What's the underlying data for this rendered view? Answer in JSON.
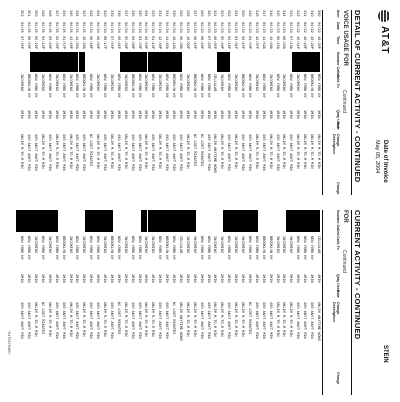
{
  "header": {
    "logo_text": "AT&T",
    "invoice_title": "Date of Invoice",
    "invoice_date": "May 05, 2004",
    "name_fragment": "STEIN"
  },
  "left_section": {
    "title": "CURRENT ACTIVITY - CONTINUED",
    "subtitle": "FOR",
    "subtitle_cont": "Continued",
    "columns": [
      "Number Called",
      "Calls To",
      "Qnty Used",
      "Rate",
      "Charge Description",
      "Charge"
    ]
  },
  "right_section": {
    "title": "DETAIL OF CURRENT ACTIVITY - CONTINUED",
    "subtitle": "VOICE USAGE FOR",
    "subtitle_cont": "Continued",
    "columns": [
      "Item",
      "Date",
      "Time",
      "Number Called",
      "Calls To",
      "Qnty Used",
      "Rate",
      "Charge Description",
      "Charge"
    ]
  },
  "left_rows": [
    {
      "calls_to": "CELLULAR",
      "qnty": "1MIN",
      "rate": "",
      "desc": "UNLIM ANYTIME NONO",
      "charge": ""
    },
    {
      "calls_to": "NEW YORK NY",
      "qnty": "1MIN",
      "rate": "",
      "desc": "400 ANYT ANYT MIN",
      "charge": ""
    },
    {
      "calls_to": "NEW YORK NY",
      "qnty": "1MIN",
      "rate": "",
      "desc": "400 ANYT ANYT MIN",
      "charge": ""
    },
    {
      "calls_to": "NEW YORK NY",
      "qnty": "1MIN",
      "rate": "",
      "desc": "400 ANYT ANYT MIN",
      "charge": ""
    },
    {
      "calls_to": "INCOMING",
      "qnty": "3MIN",
      "rate": "",
      "desc": "UNLIM M-TO-M MIN",
      "charge": ""
    },
    {
      "calls_to": "INCOMING",
      "qnty": "1MIN",
      "rate": "",
      "desc": "UNLIM M-TO-M MIN",
      "charge": ""
    },
    {
      "calls_to": "INCOMING",
      "qnty": "2MIN",
      "rate": "",
      "desc": "UNLIM M-TO-M MIN",
      "charge": ""
    },
    {
      "calls_to": "BROOKLYN NY",
      "qnty": "2MIN",
      "rate": "",
      "desc": "400 ANYT ANYT MIN",
      "charge": ""
    },
    {
      "calls_to": "BROOKLYN NY",
      "qnty": "1MIN",
      "rate": "",
      "desc": "400 ANYT ANYT MIN",
      "charge": ""
    },
    {
      "calls_to": "NEW YORK NY",
      "qnty": "1MIN",
      "rate": "",
      "desc": "400 ANYT ANYT MIN",
      "charge": ""
    },
    {
      "calls_to": "NEW YORK NY",
      "qnty": "4MIN",
      "rate": "",
      "desc": "NC LOST MINUTES",
      "charge": ""
    },
    {
      "calls_to": "INCOMING",
      "qnty": "1MIN",
      "rate": "",
      "desc": "UNLIM M-TO-M MIN",
      "charge": ""
    },
    {
      "calls_to": "INCOMING",
      "qnty": "1MIN",
      "rate": "",
      "desc": "UNLIM M-TO-M MIN",
      "charge": ""
    },
    {
      "calls_to": "NEW YORK NY",
      "qnty": "1MIN",
      "rate": "",
      "desc": "400 ANYT ANYT MIN",
      "charge": ""
    },
    {
      "calls_to": "INCOMING",
      "qnty": "2MIN",
      "rate": "",
      "desc": "UNLIM M-TO-M MIN",
      "charge": ""
    },
    {
      "calls_to": "INCOMING",
      "qnty": "1MIN",
      "rate": "",
      "desc": "UNLIM M-TO-M MIN",
      "charge": ""
    },
    {
      "calls_to": "NEW YORK NY",
      "qnty": "1MIN",
      "rate": "",
      "desc": "400 ANYT ANYT MIN",
      "charge": ""
    },
    {
      "calls_to": "NEW YORK NY",
      "qnty": "2MIN",
      "rate": "",
      "desc": "400 ANYT ANYT MIN",
      "charge": ""
    },
    {
      "calls_to": "INCOMING",
      "qnty": "1MIN",
      "rate": "",
      "desc": "UNLIM M-TO-M MIN",
      "charge": ""
    },
    {
      "calls_to": "INCOMING",
      "qnty": "1MIN",
      "rate": "",
      "desc": "UNLIM M-TO-M MIN",
      "charge": ""
    },
    {
      "calls_to": "CELLULAR",
      "qnty": "1MIN",
      "rate": "",
      "desc": "UNLIM ANYTIME NONO",
      "charge": ""
    },
    {
      "calls_to": "NEW YORK NY",
      "qnty": "1MIN",
      "rate": "",
      "desc": "NC LOST MINUTES",
      "charge": ""
    },
    {
      "calls_to": "BROOKLYN NY",
      "qnty": "2MIN",
      "rate": "",
      "desc": "400 ANYT ANYT MIN",
      "charge": ""
    },
    {
      "calls_to": "NEW YORK NY",
      "qnty": "1MIN",
      "rate": "",
      "desc": "400 ANYT ANYT MIN",
      "charge": ""
    },
    {
      "calls_to": "INCOMING",
      "qnty": "1MIN",
      "rate": "",
      "desc": "UNLIM M-TO-M MIN",
      "charge": ""
    },
    {
      "calls_to": "INCOMING",
      "qnty": "1MIN",
      "rate": "",
      "desc": "UNLIM M-TO-M MIN",
      "charge": ""
    },
    {
      "calls_to": "NEW YORK NY",
      "qnty": "1MIN",
      "rate": "",
      "desc": "400 ANYT ANYT MIN",
      "charge": ""
    },
    {
      "calls_to": "NEW YORK NY",
      "qnty": "1MIN",
      "rate": "",
      "desc": "400 ANYT ANYT MIN",
      "charge": ""
    },
    {
      "calls_to": "INCOMING",
      "qnty": "2MIN",
      "rate": "",
      "desc": "UNLIM M-TO-M MIN",
      "charge": ""
    },
    {
      "calls_to": "NEW YORK NY",
      "qnty": "1MIN",
      "rate": "",
      "desc": "NC LOST MINUTES",
      "charge": ""
    },
    {
      "calls_to": "BROOKLYN NY",
      "qnty": "1MIN",
      "rate": "",
      "desc": "400 ANYT ANYT MIN",
      "charge": ""
    },
    {
      "calls_to": "INCOMING",
      "qnty": "1MIN",
      "rate": "",
      "desc": "UNLIM M-TO-M MIN",
      "charge": ""
    },
    {
      "calls_to": "NEW YORK NY",
      "qnty": "1MIN",
      "rate": "",
      "desc": "400 ANYT ANYT MIN",
      "charge": ""
    },
    {
      "calls_to": "NEW YORK NY",
      "qnty": "1MIN",
      "rate": "",
      "desc": "400 ANYT ANYT MIN",
      "charge": ""
    },
    {
      "calls_to": "INCOMING",
      "qnty": "1MIN",
      "rate": "",
      "desc": "UNLIM M-TO-M MIN",
      "charge": ""
    },
    {
      "calls_to": "NEW YORK NY",
      "qnty": "1MIN",
      "rate": "",
      "desc": "400 ANYT ANYT MIN",
      "charge": ""
    },
    {
      "calls_to": "INCOMING",
      "qnty": "2MIN",
      "rate": "",
      "desc": "UNLIM M-TO-M MIN",
      "charge": ""
    },
    {
      "calls_to": "BROOKLYN NY",
      "qnty": "1MIN",
      "rate": "",
      "desc": "400 ANYT ANYT MIN",
      "charge": ""
    },
    {
      "calls_to": "NEW YORK NY",
      "qnty": "1MIN",
      "rate": "",
      "desc": "400 ANYT ANYT MIN",
      "charge": ""
    },
    {
      "calls_to": "INCOMING",
      "qnty": "1MIN",
      "rate": "",
      "desc": "UNLIM M-TO-M MIN",
      "charge": ""
    },
    {
      "calls_to": "NEW YORK NY",
      "qnty": "1MIN",
      "rate": "",
      "desc": "NC LOST MINUTES",
      "charge": ""
    },
    {
      "calls_to": "INCOMING",
      "qnty": "1MIN",
      "rate": "",
      "desc": "UNLIM M-TO-M MIN",
      "charge": ""
    },
    {
      "calls_to": "NEW YORK NY",
      "qnty": "1MIN",
      "rate": "",
      "desc": "400 ANYT ANYT MIN",
      "charge": ""
    },
    {
      "calls_to": "NEW YORK NY",
      "qnty": "2MIN",
      "rate": "",
      "desc": "400 ANYT ANYT MIN",
      "charge": ""
    }
  ],
  "right_rows": [
    {
      "item": "309",
      "date": "04/22",
      "time": "10:26P",
      "calls_to": "NEW YORK NY",
      "qnty": "1MIN",
      "rate": "",
      "desc": "UNLIM M-TO-M MIN",
      "charge": ""
    },
    {
      "item": "310",
      "date": "04/22",
      "time": "10:29P",
      "calls_to": "BROOKLYN NY",
      "qnty": "1MIN",
      "rate": "",
      "desc": "UNLIM M-TO-M MIN",
      "charge": ""
    },
    {
      "item": "311",
      "date": "04/22",
      "time": "10:40P",
      "calls_to": "NEW YORK NY",
      "qnty": "1MIN",
      "rate": "",
      "desc": "UNLIM M-TO-M MIN",
      "charge": ""
    },
    {
      "item": "312",
      "date": "04/22",
      "time": "10:51P",
      "calls_to": "INCOMING",
      "qnty": "2MIN",
      "rate": "",
      "desc": "UNLIM M-TO-M MIN",
      "charge": ""
    },
    {
      "item": "313",
      "date": "04/23",
      "time": "07:13A",
      "calls_to": "NEW YORK NY",
      "qnty": "1MIN",
      "rate": "",
      "desc": "400 ANYT ANYT MIN",
      "charge": ""
    },
    {
      "item": "314",
      "date": "04/23",
      "time": "08:02A",
      "calls_to": "INCOMING",
      "qnty": "1MIN",
      "rate": "",
      "desc": "UNLIM M-TO-M MIN",
      "charge": ""
    },
    {
      "item": "315",
      "date": "04/23",
      "time": "09:15A",
      "calls_to": "NEW YORK NY",
      "qnty": "1MIN",
      "rate": "",
      "desc": "400 ANYT ANYT MIN",
      "charge": ""
    },
    {
      "item": "316",
      "date": "04/23",
      "time": "10:40A",
      "calls_to": "INCOMING",
      "qnty": "1MIN",
      "rate": "",
      "desc": "UNLIM M-TO-M MIN",
      "charge": ""
    },
    {
      "item": "317",
      "date": "04/23",
      "time": "11:52A",
      "calls_to": "NEW YORK NY",
      "qnty": "1MIN",
      "rate": "",
      "desc": "400 ANYT ANYT MIN",
      "charge": ""
    },
    {
      "item": "318",
      "date": "04/23",
      "time": "12:07P",
      "calls_to": "INCOMING",
      "qnty": "3MIN",
      "rate": "",
      "desc": "UNLIM M-TO-M MIN",
      "charge": ""
    },
    {
      "item": "319",
      "date": "04/23",
      "time": "01:33P",
      "calls_to": "NEW YORK NY",
      "qnty": "1MIN",
      "rate": "",
      "desc": "400 ANYT ANYT MIN",
      "charge": ""
    },
    {
      "item": "320",
      "date": "04/23",
      "time": "02:15P",
      "calls_to": "BROOKLYN NY",
      "qnty": "1MIN",
      "rate": "",
      "desc": "400 ANYT ANYT MIN",
      "charge": ""
    },
    {
      "item": "321",
      "date": "04/23",
      "time": "03:01P",
      "calls_to": "INCOMING",
      "qnty": "1MIN",
      "rate": "",
      "desc": "UNLIM M-TO-M MIN",
      "charge": ""
    },
    {
      "item": "322",
      "date": "04/23",
      "time": "04:18P",
      "calls_to": "NEW YORK NY",
      "qnty": "1MIN",
      "rate": "",
      "desc": "400 ANYT ANYT MIN",
      "charge": ""
    },
    {
      "item": "323",
      "date": "04/23",
      "time": "05:40P",
      "calls_to": "INCOMING",
      "qnty": "1MIN",
      "rate": "",
      "desc": "UNLIM M-TO-M MIN",
      "charge": ""
    },
    {
      "item": "324",
      "date": "04/23",
      "time": "06:05P",
      "calls_to": "CELLULAR",
      "qnty": "1MIN",
      "rate": "",
      "desc": "UNLIM ANYTIME NONO",
      "charge": ""
    },
    {
      "item": "325",
      "date": "04/23",
      "time": "07:22P",
      "calls_to": "NEW YORK NY",
      "qnty": "1MIN",
      "rate": "",
      "desc": "400 ANYT ANYT MIN",
      "charge": ""
    },
    {
      "item": "326",
      "date": "04/23",
      "time": "08:46P",
      "calls_to": "NEW YORK NY",
      "qnty": "2MIN",
      "rate": "",
      "desc": "NC LOST MINUTES",
      "charge": ""
    },
    {
      "item": "327",
      "date": "04/23",
      "time": "09:10P",
      "calls_to": "BROOKLYN NY",
      "qnty": "1MIN",
      "rate": "",
      "desc": "NC LOST MINUTES",
      "charge": ""
    },
    {
      "item": "328",
      "date": "04/23",
      "time": "10:02P",
      "calls_to": "INCOMING",
      "qnty": "1MIN",
      "rate": "",
      "desc": "UNLIM M-TO-M MIN",
      "charge": ""
    },
    {
      "item": "329",
      "date": "04/24",
      "time": "09:30A",
      "calls_to": "NEW YORK NY",
      "qnty": "1MIN",
      "rate": "",
      "desc": "400 ANYT ANYT MIN",
      "charge": ""
    },
    {
      "item": "330",
      "date": "04/24",
      "time": "10:12A",
      "calls_to": "BROOKLYN NY",
      "qnty": "1MIN",
      "rate": "",
      "desc": "400 ANYT ANYT MIN",
      "charge": ""
    },
    {
      "item": "331",
      "date": "04/24",
      "time": "11:45A",
      "calls_to": "NEW YORK NY",
      "qnty": "1MIN",
      "rate": "",
      "desc": "400 ANYT ANYT MIN",
      "charge": ""
    },
    {
      "item": "332",
      "date": "04/24",
      "time": "12:30P",
      "calls_to": "INCOMING",
      "qnty": "1MIN",
      "rate": "",
      "desc": "UNLIM M-TO-M MIN",
      "charge": ""
    },
    {
      "item": "333",
      "date": "04/24",
      "time": "01:14P",
      "calls_to": "NEW YORK NY",
      "qnty": "1MIN",
      "rate": "",
      "desc": "400 ANYT ANYT MIN",
      "charge": ""
    },
    {
      "item": "334",
      "date": "04/24",
      "time": "02:50P",
      "calls_to": "INCOMING",
      "qnty": "2MIN",
      "rate": "",
      "desc": "UNLIM M-TO-M MIN",
      "charge": ""
    },
    {
      "item": "335",
      "date": "04/24",
      "time": "03:33P",
      "calls_to": "NEW YORK NY",
      "qnty": "1MIN",
      "rate": "",
      "desc": "400 ANYT ANYT MIN",
      "charge": ""
    },
    {
      "item": "336",
      "date": "04/24",
      "time": "04:08P",
      "calls_to": "BROOKLYN NY",
      "qnty": "1MIN",
      "rate": "",
      "desc": "400 ANYT ANYT MIN",
      "charge": ""
    },
    {
      "item": "337",
      "date": "04/24",
      "time": "05:26P",
      "calls_to": "INCOMING",
      "qnty": "1MIN",
      "rate": "",
      "desc": "UNLIM M-TO-M MIN",
      "charge": ""
    },
    {
      "item": "338",
      "date": "04/24",
      "time": "06:41P",
      "calls_to": "NEW YORK NY",
      "qnty": "1MIN",
      "rate": "",
      "desc": "400 ANYT ANYT MIN",
      "charge": ""
    },
    {
      "item": "339",
      "date": "04/24",
      "time": "07:55P",
      "calls_to": "INCOMING",
      "qnty": "1MIN",
      "rate": "",
      "desc": "UNLIM M-TO-M MIN",
      "charge": ""
    },
    {
      "item": "340",
      "date": "04/24",
      "time": "08:17P",
      "calls_to": "NEW YORK NY",
      "qnty": "1MIN",
      "rate": "",
      "desc": "400 ANYT ANYT MIN",
      "charge": ""
    },
    {
      "item": "341",
      "date": "04/24",
      "time": "09:02P",
      "calls_to": "INCOMING",
      "qnty": "2MIN",
      "rate": "",
      "desc": "UNLIM M-TO-M MIN",
      "charge": ""
    },
    {
      "item": "342",
      "date": "04/24",
      "time": "09:48P",
      "calls_to": "NEW YORK NY",
      "qnty": "1MIN",
      "rate": "",
      "desc": "NC LOST MINUTES",
      "charge": ""
    },
    {
      "item": "343",
      "date": "04/25",
      "time": "10:20A",
      "calls_to": "BROOKLYN NY",
      "qnty": "1MIN",
      "rate": "",
      "desc": "400 ANYT ANYT MIN",
      "charge": ""
    },
    {
      "item": "344",
      "date": "04/25",
      "time": "11:05A",
      "calls_to": "NEW YORK NY",
      "qnty": "1MIN",
      "rate": "",
      "desc": "400 ANYT ANYT MIN",
      "charge": ""
    },
    {
      "item": "345",
      "date": "04/25",
      "time": "12:40P",
      "calls_to": "INCOMING",
      "qnty": "1MIN",
      "rate": "",
      "desc": "UNLIM M-TO-M MIN",
      "charge": ""
    },
    {
      "item": "346",
      "date": "04/25",
      "time": "01:57P",
      "calls_to": "NEW YORK NY",
      "qnty": "1MIN",
      "rate": "",
      "desc": "400 ANYT ANYT MIN",
      "charge": ""
    },
    {
      "item": "347",
      "date": "04/25",
      "time": "02:33P",
      "calls_to": "INCOMING",
      "qnty": "1MIN",
      "rate": "",
      "desc": "UNLIM M-TO-M MIN",
      "charge": ""
    },
    {
      "item": "348",
      "date": "04/25",
      "time": "03:46P",
      "calls_to": "NEW YORK NY",
      "qnty": "1MIN",
      "rate": "",
      "desc": "400 ANYT ANYT MIN",
      "charge": ""
    },
    {
      "item": "349",
      "date": "04/25",
      "time": "04:12P",
      "calls_to": "INCOMING",
      "qnty": "1MIN",
      "rate": "",
      "desc": "UNLIM M-TO-M MIN",
      "charge": ""
    },
    {
      "item": "350",
      "date": "04/25",
      "time": "05:29P",
      "calls_to": "NEW YORK NY",
      "qnty": "1MIN",
      "rate": "",
      "desc": "400 ANYT ANYT MIN",
      "charge": ""
    },
    {
      "item": "351",
      "date": "04/25",
      "time": "06:50P",
      "calls_to": "BROOKLYN NY",
      "qnty": "1MIN",
      "rate": "",
      "desc": "400 ANYT ANYT MIN",
      "charge": ""
    },
    {
      "item": "352",
      "date": "04/25",
      "time": "07:35P",
      "calls_to": "INCOMING",
      "qnty": "2MIN",
      "rate": "",
      "desc": "UNLIM M-TO-M MIN",
      "charge": ""
    }
  ],
  "footnote": "*0175670465*"
}
